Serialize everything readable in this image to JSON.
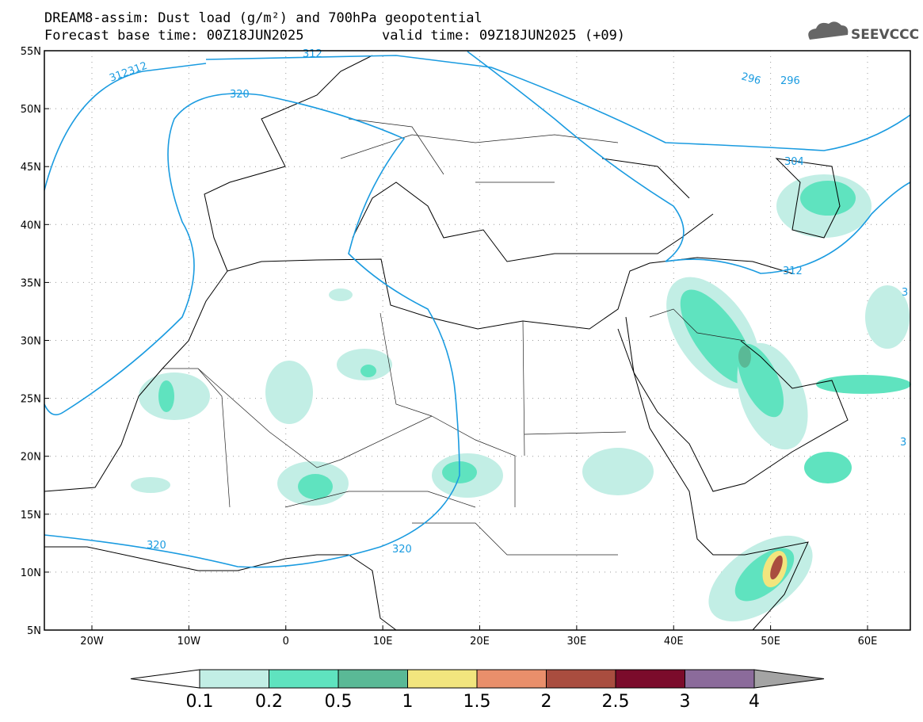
{
  "header": {
    "title": "DREAM8-assim: Dust load (g/m²) and 700hPa geopotential",
    "subtitle_base": "Forecast base time: 00Z18JUN2025",
    "subtitle_valid": "valid time: 09Z18JUN2025 (+09)",
    "logo": "SEEVCCC"
  },
  "map": {
    "lat_ticks": [
      {
        "value": 55,
        "label": "55N"
      },
      {
        "value": 50,
        "label": "50N"
      },
      {
        "value": 45,
        "label": "45N"
      },
      {
        "value": 40,
        "label": "40N"
      },
      {
        "value": 35,
        "label": "35N"
      },
      {
        "value": 30,
        "label": "30N"
      },
      {
        "value": 25,
        "label": "25N"
      },
      {
        "value": 20,
        "label": "20N"
      },
      {
        "value": 15,
        "label": "15N"
      },
      {
        "value": 10,
        "label": "10N"
      },
      {
        "value": 5,
        "label": "5N"
      }
    ],
    "lon_ticks": [
      {
        "value": -20,
        "label": "20W"
      },
      {
        "value": -10,
        "label": "10W"
      },
      {
        "value": 0,
        "label": "0"
      },
      {
        "value": 10,
        "label": "10E"
      },
      {
        "value": 20,
        "label": "20E"
      },
      {
        "value": 30,
        "label": "30E"
      },
      {
        "value": 40,
        "label": "40E"
      },
      {
        "value": 50,
        "label": "50E"
      },
      {
        "value": 60,
        "label": "60E"
      }
    ],
    "contour_labels": [
      "312312",
      "312",
      "320",
      "296",
      "296",
      "304",
      "312",
      "320",
      "320",
      "3",
      "3"
    ]
  },
  "colorbar": {
    "levels": [
      0.1,
      0.2,
      0.5,
      1,
      1.5,
      2,
      2.5,
      3,
      4
    ],
    "colors": [
      "#c2eee5",
      "#5fe3bf",
      "#5ab996",
      "#f2e57e",
      "#e98f6b",
      "#a94d3f",
      "#7b0b2b",
      "#8b6b9b"
    ],
    "under_color": "#ffffff",
    "over_color": "#a4a4a4"
  }
}
